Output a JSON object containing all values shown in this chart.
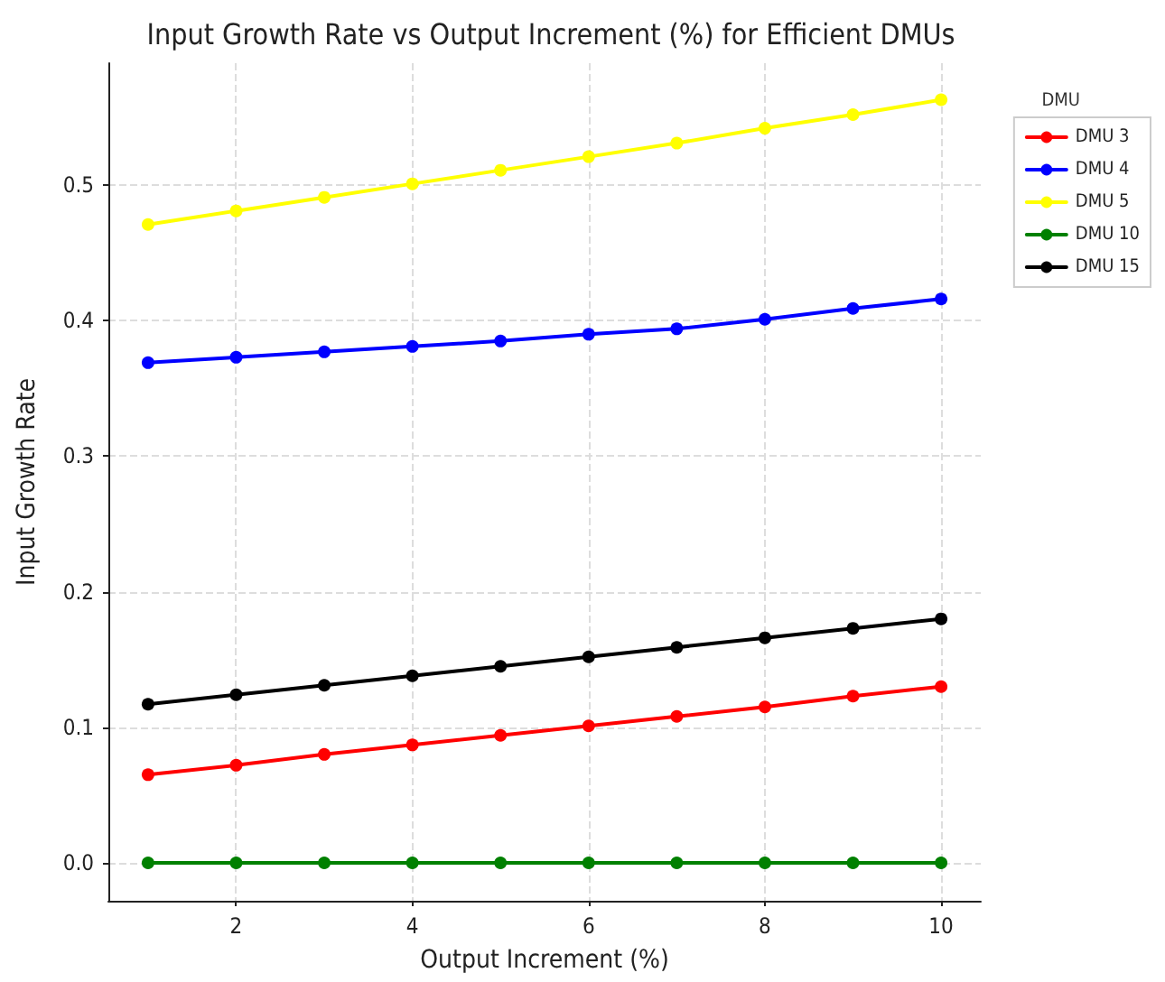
{
  "chart_data": {
    "type": "line",
    "title": "Input Growth Rate vs Output Increment (%) for Efficient DMUs",
    "xlabel": "Output Increment (%)",
    "ylabel": "Input Growth Rate",
    "legend_title": "DMU",
    "x": [
      1,
      2,
      3,
      4,
      5,
      6,
      7,
      8,
      9,
      10
    ],
    "series": [
      {
        "name": "DMU 3",
        "color": "#ff0000",
        "values": [
          0.065,
          0.072,
          0.08,
          0.087,
          0.094,
          0.101,
          0.108,
          0.115,
          0.123,
          0.13
        ]
      },
      {
        "name": "DMU 4",
        "color": "#0000ff",
        "values": [
          0.369,
          0.373,
          0.377,
          0.381,
          0.385,
          0.39,
          0.394,
          0.401,
          0.409,
          0.416
        ]
      },
      {
        "name": "DMU 5",
        "color": "#ffff00",
        "values": [
          0.471,
          0.481,
          0.491,
          0.501,
          0.511,
          0.521,
          0.531,
          0.542,
          0.552,
          0.563
        ]
      },
      {
        "name": "DMU 10",
        "color": "#008000",
        "values": [
          0,
          0,
          0,
          0,
          0,
          0,
          0,
          0,
          0,
          0
        ]
      },
      {
        "name": "DMU 15",
        "color": "#000000",
        "values": [
          0.117,
          0.124,
          0.131,
          0.138,
          0.145,
          0.152,
          0.159,
          0.166,
          0.173,
          0.18
        ]
      }
    ],
    "xlim": [
      0.55,
      10.45
    ],
    "xticks": [
      2,
      4,
      6,
      8,
      10
    ],
    "ylim": [
      -0.028,
      0.59
    ],
    "yticks": [
      {
        "value": 0,
        "label": "0.0"
      },
      0.1,
      0.2,
      0.3,
      0.4,
      0.5
    ],
    "grid": true,
    "legend": "top right",
    "marker": "circle",
    "line_style": "solid"
  }
}
